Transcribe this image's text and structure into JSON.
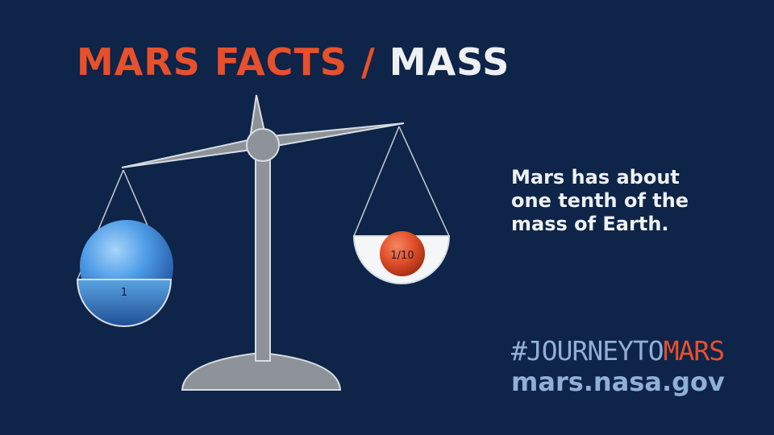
{
  "title": {
    "prefix": "MARS FACTS",
    "separator": " / ",
    "topic": "MASS"
  },
  "scale": {
    "earth_label": "1",
    "mars_label": "1/10"
  },
  "fact": {
    "line1": "Mars has about",
    "line2": "one tenth of the",
    "line3": "mass of Earth."
  },
  "footer": {
    "hashtag_journey": "#JOURNEYTO",
    "hashtag_mars": "MARS",
    "url": "mars.nasa.gov"
  },
  "colors": {
    "background": "#0e2448",
    "accent_orange": "#e8502c",
    "text_light": "#eef0f2",
    "text_blue": "#8fb0d6",
    "scale_gray": "#8e9399"
  }
}
